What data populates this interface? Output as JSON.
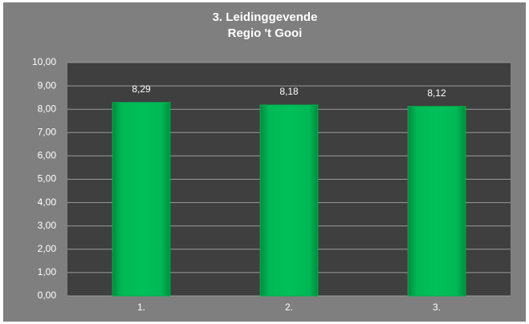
{
  "chart_data": {
    "type": "bar",
    "title": [
      "3. Leidinggevende",
      "Regio 't Gooi"
    ],
    "categories": [
      "1.",
      "2.",
      "3."
    ],
    "values": [
      8.29,
      8.18,
      8.12
    ],
    "value_labels": [
      "8,29",
      "8,18",
      "8,12"
    ],
    "color": "#00b050",
    "ylim": [
      0,
      10
    ],
    "yticks": [
      {
        "value": 0,
        "label": "0,00"
      },
      {
        "value": 1,
        "label": "1,00"
      },
      {
        "value": 2,
        "label": "2,00"
      },
      {
        "value": 3,
        "label": "3,00"
      },
      {
        "value": 4,
        "label": "4,00"
      },
      {
        "value": 5,
        "label": "5,00"
      },
      {
        "value": 6,
        "label": "6,00"
      },
      {
        "value": 7,
        "label": "7,00"
      },
      {
        "value": 8,
        "label": "8,00"
      },
      {
        "value": 9,
        "label": "9,00"
      },
      {
        "value": 10,
        "label": "10,00"
      }
    ],
    "grid": true
  }
}
